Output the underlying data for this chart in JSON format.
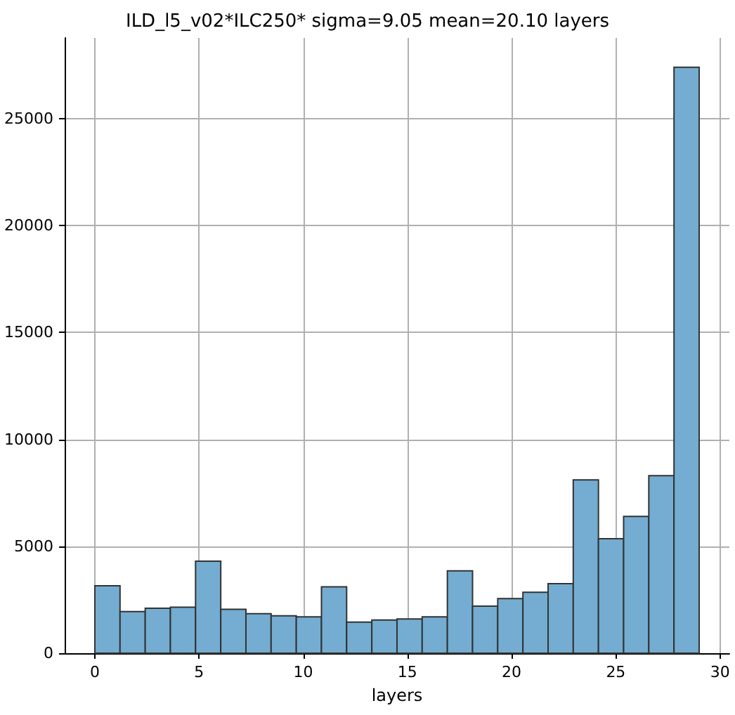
{
  "chart_data": {
    "type": "histogram",
    "title": "ILD_l5_v02*ILC250* sigma=9.05 mean=20.10 layers",
    "xlabel": "layers",
    "bins": [
      0,
      1.208,
      2.417,
      3.625,
      4.833,
      6.042,
      7.25,
      8.458,
      9.667,
      10.875,
      12.083,
      13.292,
      14.5,
      15.708,
      16.917,
      18.125,
      19.333,
      20.542,
      21.75,
      22.958,
      24.167,
      25.375,
      26.583,
      27.792,
      29
    ],
    "values": [
      3150,
      1950,
      2100,
      2150,
      4300,
      2050,
      1850,
      1750,
      1700,
      3100,
      1450,
      1550,
      1600,
      1700,
      3850,
      2200,
      2550,
      2850,
      3250,
      8100,
      5350,
      6400,
      8300,
      27400
    ],
    "color": "#74add1",
    "xlim": [
      -1.45,
      30.45
    ],
    "xticks": [
      0,
      5,
      10,
      15,
      20,
      25,
      30
    ],
    "ylim": [
      0,
      28770
    ],
    "yticks": [
      0,
      5000,
      10000,
      15000,
      20000,
      25000
    ],
    "grid": true
  }
}
